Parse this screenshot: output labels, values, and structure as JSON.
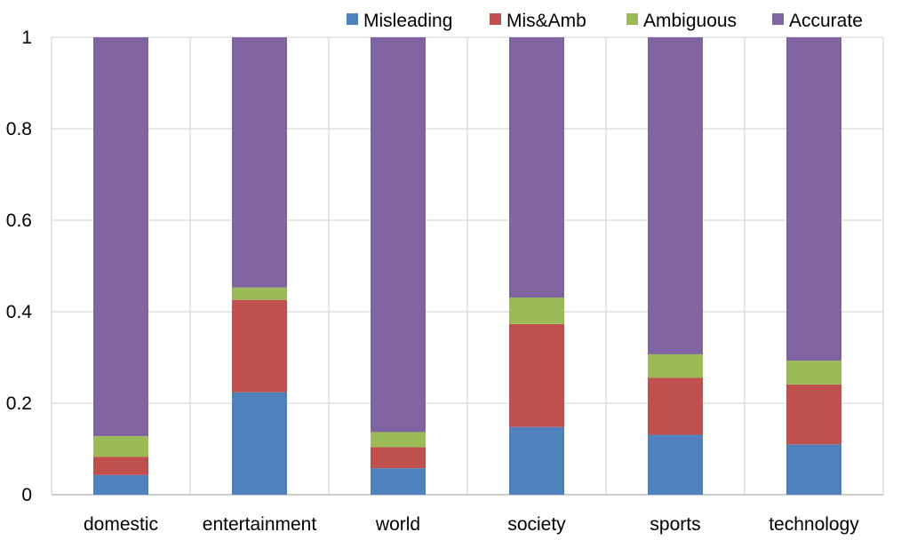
{
  "chart_data": {
    "type": "bar",
    "stacked": true,
    "categories": [
      "domestic",
      "entertainment",
      "world",
      "society",
      "sports",
      "technology"
    ],
    "series": [
      {
        "name": "Misleading",
        "color": "#4F81BD",
        "values": [
          0.043,
          0.224,
          0.058,
          0.148,
          0.131,
          0.11
        ]
      },
      {
        "name": "Mis&Amb",
        "color": "#C0504D",
        "values": [
          0.04,
          0.202,
          0.046,
          0.225,
          0.125,
          0.131
        ]
      },
      {
        "name": "Ambiguous",
        "color": "#9BBB59",
        "values": [
          0.045,
          0.027,
          0.033,
          0.058,
          0.051,
          0.052
        ]
      },
      {
        "name": "Accurate",
        "color": "#8064A2",
        "values": [
          0.872,
          0.547,
          0.863,
          0.569,
          0.693,
          0.707
        ]
      }
    ],
    "ylim": [
      0,
      1
    ],
    "yticks": [
      "0",
      "0.2",
      "0.4",
      "0.6",
      "0.8",
      "1"
    ],
    "xlabel": "",
    "ylabel": "",
    "title": "",
    "grid": true,
    "legend_position": "top-right"
  }
}
